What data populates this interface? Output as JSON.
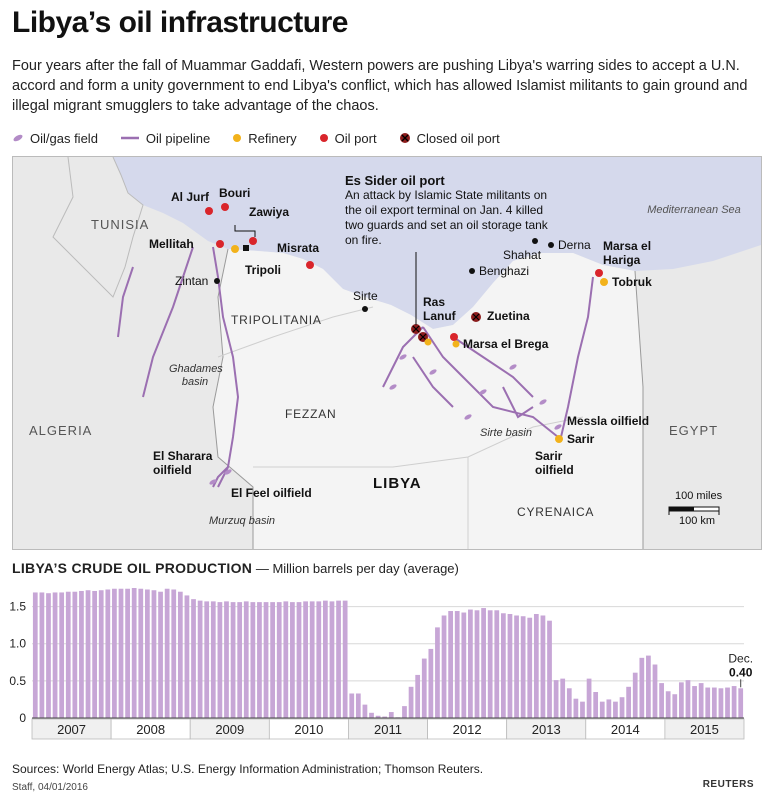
{
  "title": "Libya’s oil infrastructure",
  "intro": "Four years after the fall of Muammar Gaddafi, Western powers are pushing Libya's warring sides to accept a U.N. accord and form a unity government to end Libya's conflict, which has allowed Islamist militants to gain ground and illegal migrant smugglers to take advantage of the chaos.",
  "legend": {
    "field": "Oil/gas field",
    "pipeline": "Oil pipeline",
    "refinery": "Refinery",
    "port": "Oil port",
    "closed": "Closed oil port"
  },
  "colors": {
    "purple": "#9b6fb1",
    "field": "#b38cc7",
    "refinery": "#f2b21b",
    "port": "#d9252b",
    "closed": "#8c1c1c",
    "sea": "#d5d9ec",
    "land": "#f2f2f2",
    "bar": "#c7a6d6"
  },
  "callout": {
    "title": "Es Sider oil port",
    "text": "An attack by Islamic State militants on the oil export terminal on Jan. 4 killed two guards and set an oil storage tank on fire."
  },
  "map": {
    "countries": {
      "tunisia": "TUNISIA",
      "algeria": "ALGERIA",
      "egypt": "EGYPT",
      "libya": "LIBYA"
    },
    "sea": "Mediterranean Sea",
    "regions": {
      "tripolitania": "TRIPOLITANIA",
      "fezzan": "FEZZAN",
      "cyrenaica": "CYRENAICA"
    },
    "basins": {
      "ghadames": "Ghadames basin",
      "sirte": "Sirte basin",
      "murzuq": "Murzuq basin"
    },
    "places": {
      "al_jurf": "Al Jurf",
      "bouri": "Bouri",
      "zawiya": "Zawiya",
      "mellitah": "Mellitah",
      "tripoli": "Tripoli",
      "zintan": "Zintan",
      "misrata": "Misrata",
      "sirte": "Sirte",
      "ras_lanuf": "Ras Lanuf",
      "zuetina": "Zuetina",
      "marsa_el_brega": "Marsa el Brega",
      "benghazi": "Benghazi",
      "shahat": "Shahat",
      "derna": "Derna",
      "marsa_el_hariga": "Marsa el Hariga",
      "tobruk": "Tobruk",
      "messla": "Messla oilfield",
      "sarir": "Sarir",
      "sarir_oilfield": "Sarir oilfield",
      "el_sharara": "El Sharara oilfield",
      "el_feel": "El Feel oilfield"
    },
    "scale": {
      "miles": "100 miles",
      "km": "100 km"
    }
  },
  "chart_header": {
    "title": "LIBYA’S CRUDE OIL PRODUCTION",
    "subtitle": "— Million barrels per day (average)"
  },
  "chart_annotation": {
    "label": "Dec.",
    "value": "0.40"
  },
  "chart_data": {
    "type": "bar",
    "title": "LIBYA’S CRUDE OIL PRODUCTION",
    "ylabel": "Million barrels per day (average)",
    "ylim": [
      0,
      1.75
    ],
    "yticks": [
      0,
      0.5,
      1.0,
      1.5
    ],
    "ytick_labels": [
      "0",
      "0.5",
      "1.0",
      "1.5"
    ],
    "grid": true,
    "years": [
      "2007",
      "2008",
      "2009",
      "2010",
      "2011",
      "2012",
      "2013",
      "2014",
      "2015"
    ],
    "values": [
      1.69,
      1.69,
      1.68,
      1.69,
      1.69,
      1.7,
      1.7,
      1.71,
      1.72,
      1.71,
      1.72,
      1.73,
      1.74,
      1.74,
      1.74,
      1.75,
      1.74,
      1.73,
      1.72,
      1.7,
      1.74,
      1.73,
      1.7,
      1.65,
      1.6,
      1.58,
      1.57,
      1.57,
      1.56,
      1.57,
      1.56,
      1.56,
      1.57,
      1.56,
      1.56,
      1.56,
      1.56,
      1.56,
      1.57,
      1.56,
      1.56,
      1.57,
      1.57,
      1.57,
      1.58,
      1.57,
      1.58,
      1.58,
      0.33,
      0.33,
      0.18,
      0.07,
      0.03,
      0.02,
      0.08,
      0.01,
      0.16,
      0.42,
      0.58,
      0.8,
      0.93,
      1.22,
      1.38,
      1.44,
      1.44,
      1.42,
      1.46,
      1.45,
      1.48,
      1.45,
      1.45,
      1.41,
      1.4,
      1.38,
      1.37,
      1.35,
      1.4,
      1.38,
      1.31,
      0.51,
      0.53,
      0.4,
      0.26,
      0.22,
      0.53,
      0.35,
      0.22,
      0.25,
      0.22,
      0.28,
      0.42,
      0.61,
      0.81,
      0.84,
      0.72,
      0.47,
      0.36,
      0.32,
      0.48,
      0.51,
      0.43,
      0.47,
      0.41,
      0.41,
      0.4,
      0.41,
      0.43,
      0.4
    ]
  },
  "sources": "Sources: World Energy Atlas; U.S. Energy Information Administration; Thomson Reuters.",
  "credit": "Staff, 04/01/2016",
  "logo": "REUTERS"
}
